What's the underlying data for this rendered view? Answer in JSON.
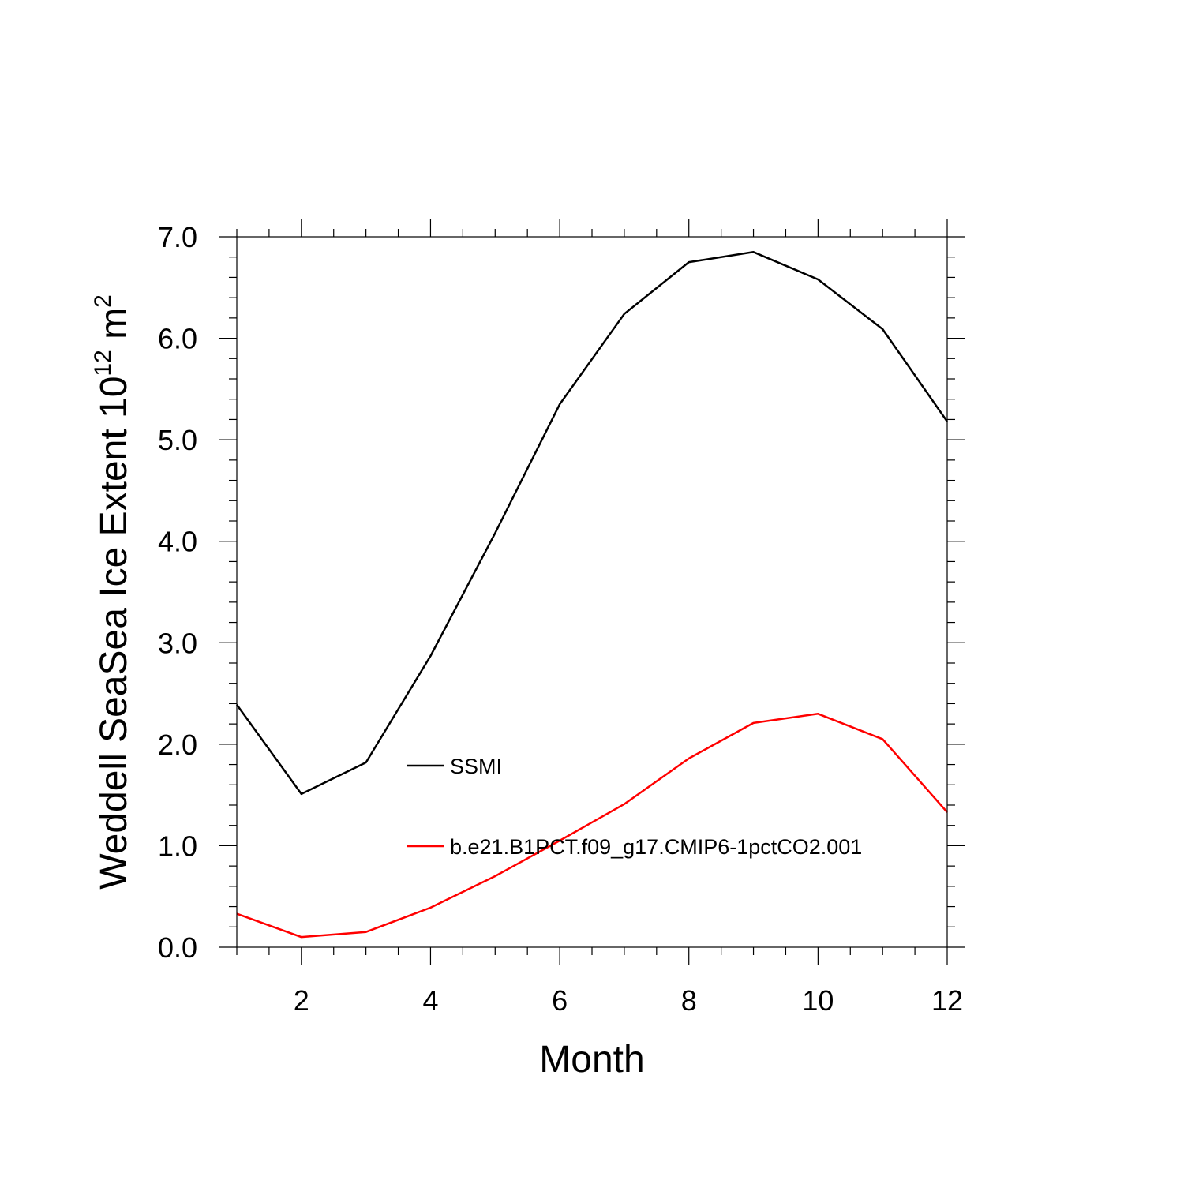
{
  "chart_data": {
    "type": "line",
    "title": "",
    "xlabel": "Month",
    "ylabel": {
      "text": "Weddell SeaSea Ice Extent 10",
      "superscript1": "12",
      "unit": " m",
      "superscript2": "2"
    },
    "xlim": [
      1,
      12
    ],
    "ylim": [
      0.0,
      7.0
    ],
    "x": [
      1,
      2,
      3,
      4,
      5,
      6,
      7,
      8,
      9,
      10,
      11,
      12
    ],
    "x_ticks": [
      "2",
      "4",
      "6",
      "8",
      "10",
      "12"
    ],
    "y_ticks": [
      "0.0",
      "1.0",
      "2.0",
      "3.0",
      "4.0",
      "5.0",
      "6.0",
      "7.0"
    ],
    "grid": false,
    "legend_position": "center",
    "series": [
      {
        "name": "SSMI",
        "color": "#000000",
        "values": [
          2.39,
          1.51,
          1.82,
          2.87,
          4.08,
          5.35,
          6.24,
          6.75,
          6.85,
          6.58,
          6.09,
          5.18
        ]
      },
      {
        "name": "b.e21.B1PCT.f09_g17.CMIP6-1pctCO2.001",
        "color": "#ff0000",
        "values": [
          0.33,
          0.1,
          0.15,
          0.39,
          0.7,
          1.05,
          1.41,
          1.86,
          2.21,
          2.3,
          2.05,
          1.33
        ]
      }
    ]
  }
}
